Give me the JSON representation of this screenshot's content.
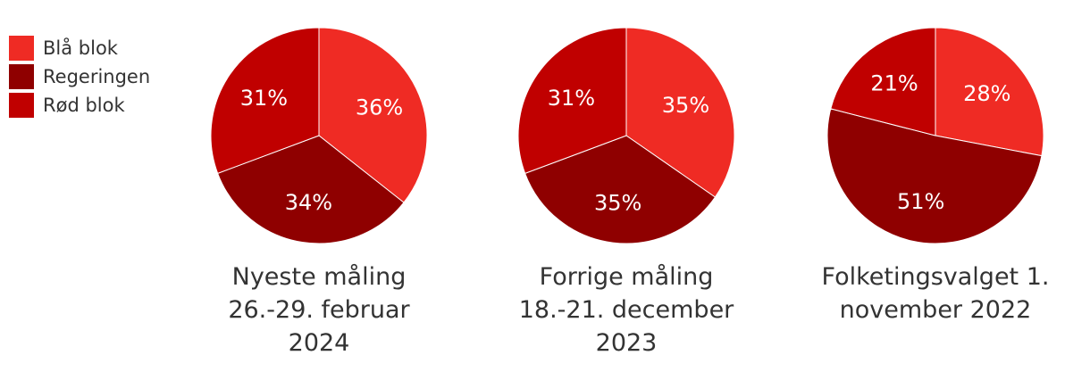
{
  "chart_data": [
    {
      "type": "pie",
      "title": "Nyeste måling 26.-29. februar 2024",
      "categories": [
        "Blå blok",
        "Regeringen",
        "Rød blok"
      ],
      "colors": [
        "#ef2b24",
        "#8f0000",
        "#c00000"
      ],
      "values": [
        36,
        34,
        31
      ],
      "value_labels": [
        "36%",
        "34%",
        "31%"
      ]
    },
    {
      "type": "pie",
      "title": "Forrige måling 18.-21. december 2023",
      "categories": [
        "Blå blok",
        "Regeringen",
        "Rød blok"
      ],
      "colors": [
        "#ef2b24",
        "#8f0000",
        "#c00000"
      ],
      "values": [
        35,
        35,
        31
      ],
      "value_labels": [
        "35%",
        "35%",
        "31%"
      ]
    },
    {
      "type": "pie",
      "title": "Folketingsvalget 1. november 2022",
      "categories": [
        "Blå blok",
        "Regeringen",
        "Rød blok"
      ],
      "colors": [
        "#ef2b24",
        "#8f0000",
        "#c00000"
      ],
      "values": [
        28,
        51,
        21
      ],
      "value_labels": [
        "28%",
        "51%",
        "21%"
      ]
    }
  ]
}
